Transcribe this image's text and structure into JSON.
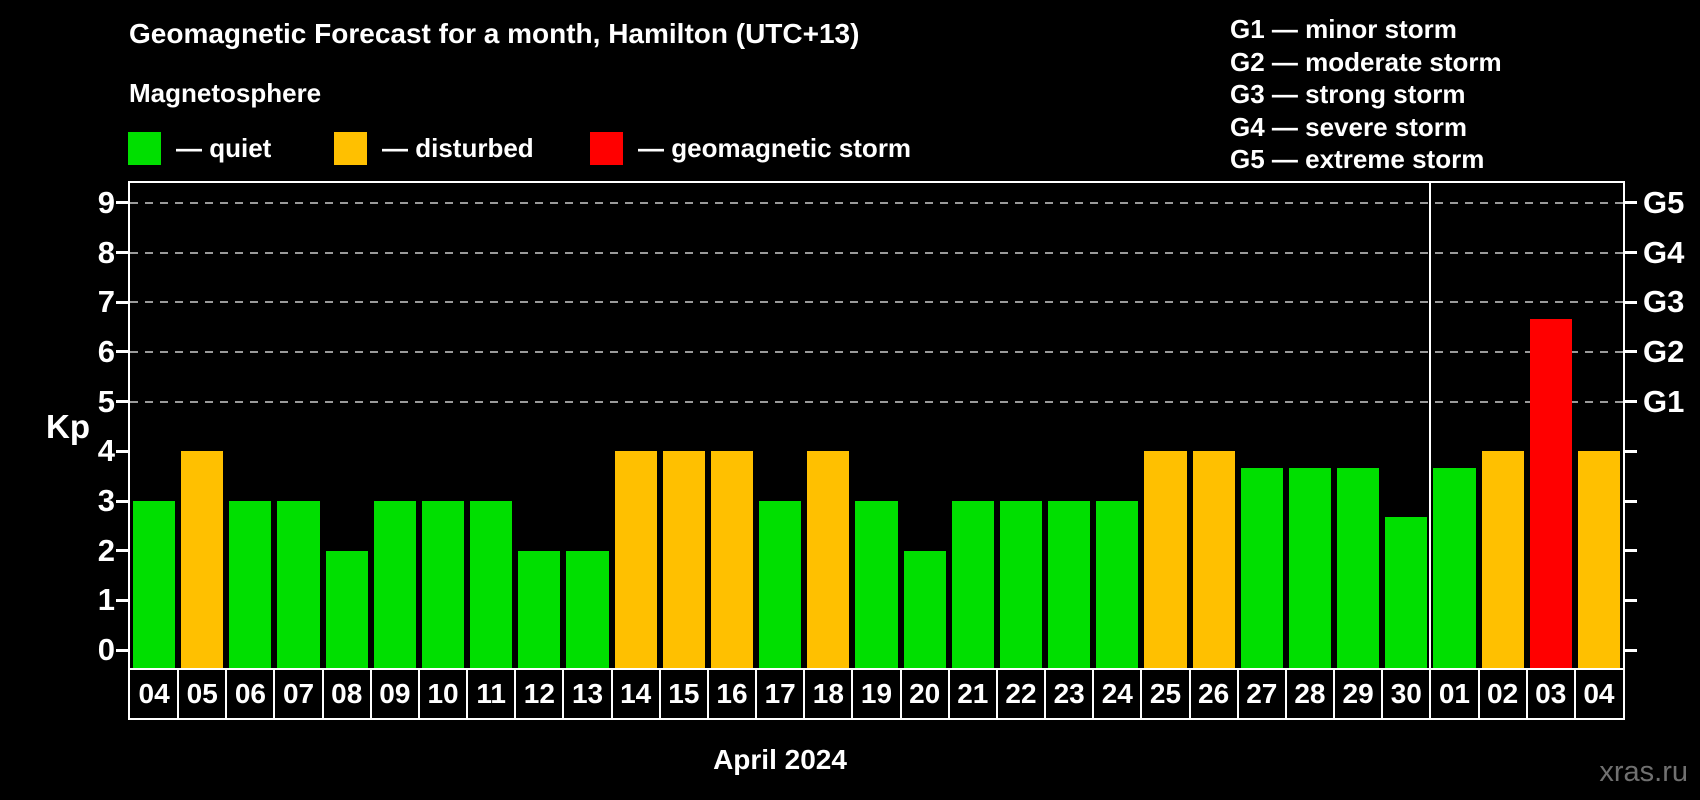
{
  "title": "Geomagnetic Forecast for a month, Hamilton (UTC+13)",
  "subtitle": "Magnetosphere",
  "magnetosphere_legend": [
    {
      "status": "quiet",
      "label": "— quiet",
      "color": "#00DF00"
    },
    {
      "status": "disturbed",
      "label": "— disturbed",
      "color": "#FFC000"
    },
    {
      "status": "storm",
      "label": "— geomagnetic storm",
      "color": "#FF0000"
    }
  ],
  "g_scale_legend": [
    "G1 — minor storm",
    "G2 — moderate storm",
    "G3 — strong storm",
    "G4 — severe storm",
    "G5 — extreme storm"
  ],
  "watermark": "xras.ru",
  "chart_data": {
    "type": "bar",
    "title": "Geomagnetic Forecast for a month, Hamilton (UTC+13)",
    "xlabel": "April 2024",
    "ylabel": "Kp",
    "ylim": [
      -0.36,
      9.4
    ],
    "y_ticks": [
      0,
      1,
      2,
      3,
      4,
      5,
      6,
      7,
      8,
      9
    ],
    "gridlines_at": [
      5,
      6,
      7,
      8,
      9
    ],
    "right_axis_labels": [
      {
        "label": "G1",
        "kp": 5
      },
      {
        "label": "G2",
        "kp": 6
      },
      {
        "label": "G3",
        "kp": 7
      },
      {
        "label": "G4",
        "kp": 8
      },
      {
        "label": "G5",
        "kp": 9
      }
    ],
    "categories": [
      "04",
      "05",
      "06",
      "07",
      "08",
      "09",
      "10",
      "11",
      "12",
      "13",
      "14",
      "15",
      "16",
      "17",
      "18",
      "19",
      "20",
      "21",
      "22",
      "23",
      "24",
      "25",
      "26",
      "27",
      "28",
      "29",
      "30",
      "01",
      "02",
      "03",
      "04"
    ],
    "values": [
      3,
      4,
      3,
      3,
      2,
      3,
      3,
      3,
      2,
      2,
      4,
      4,
      4,
      3,
      4,
      3,
      2,
      3,
      3,
      3,
      3,
      4,
      4,
      3.67,
      3.67,
      3.67,
      2.67,
      3.67,
      4,
      6.67,
      4
    ],
    "status": [
      "quiet",
      "disturbed",
      "quiet",
      "quiet",
      "quiet",
      "quiet",
      "quiet",
      "quiet",
      "quiet",
      "quiet",
      "disturbed",
      "disturbed",
      "disturbed",
      "quiet",
      "disturbed",
      "quiet",
      "quiet",
      "quiet",
      "quiet",
      "quiet",
      "quiet",
      "disturbed",
      "disturbed",
      "quiet",
      "quiet",
      "quiet",
      "quiet",
      "quiet",
      "disturbed",
      "storm",
      "disturbed"
    ],
    "month_separator_after_index": 26,
    "colors": {
      "quiet": "#00DF00",
      "disturbed": "#FFC000",
      "storm": "#FF0000"
    },
    "grid_color": "#9A9A9A",
    "legend_position": "top"
  }
}
